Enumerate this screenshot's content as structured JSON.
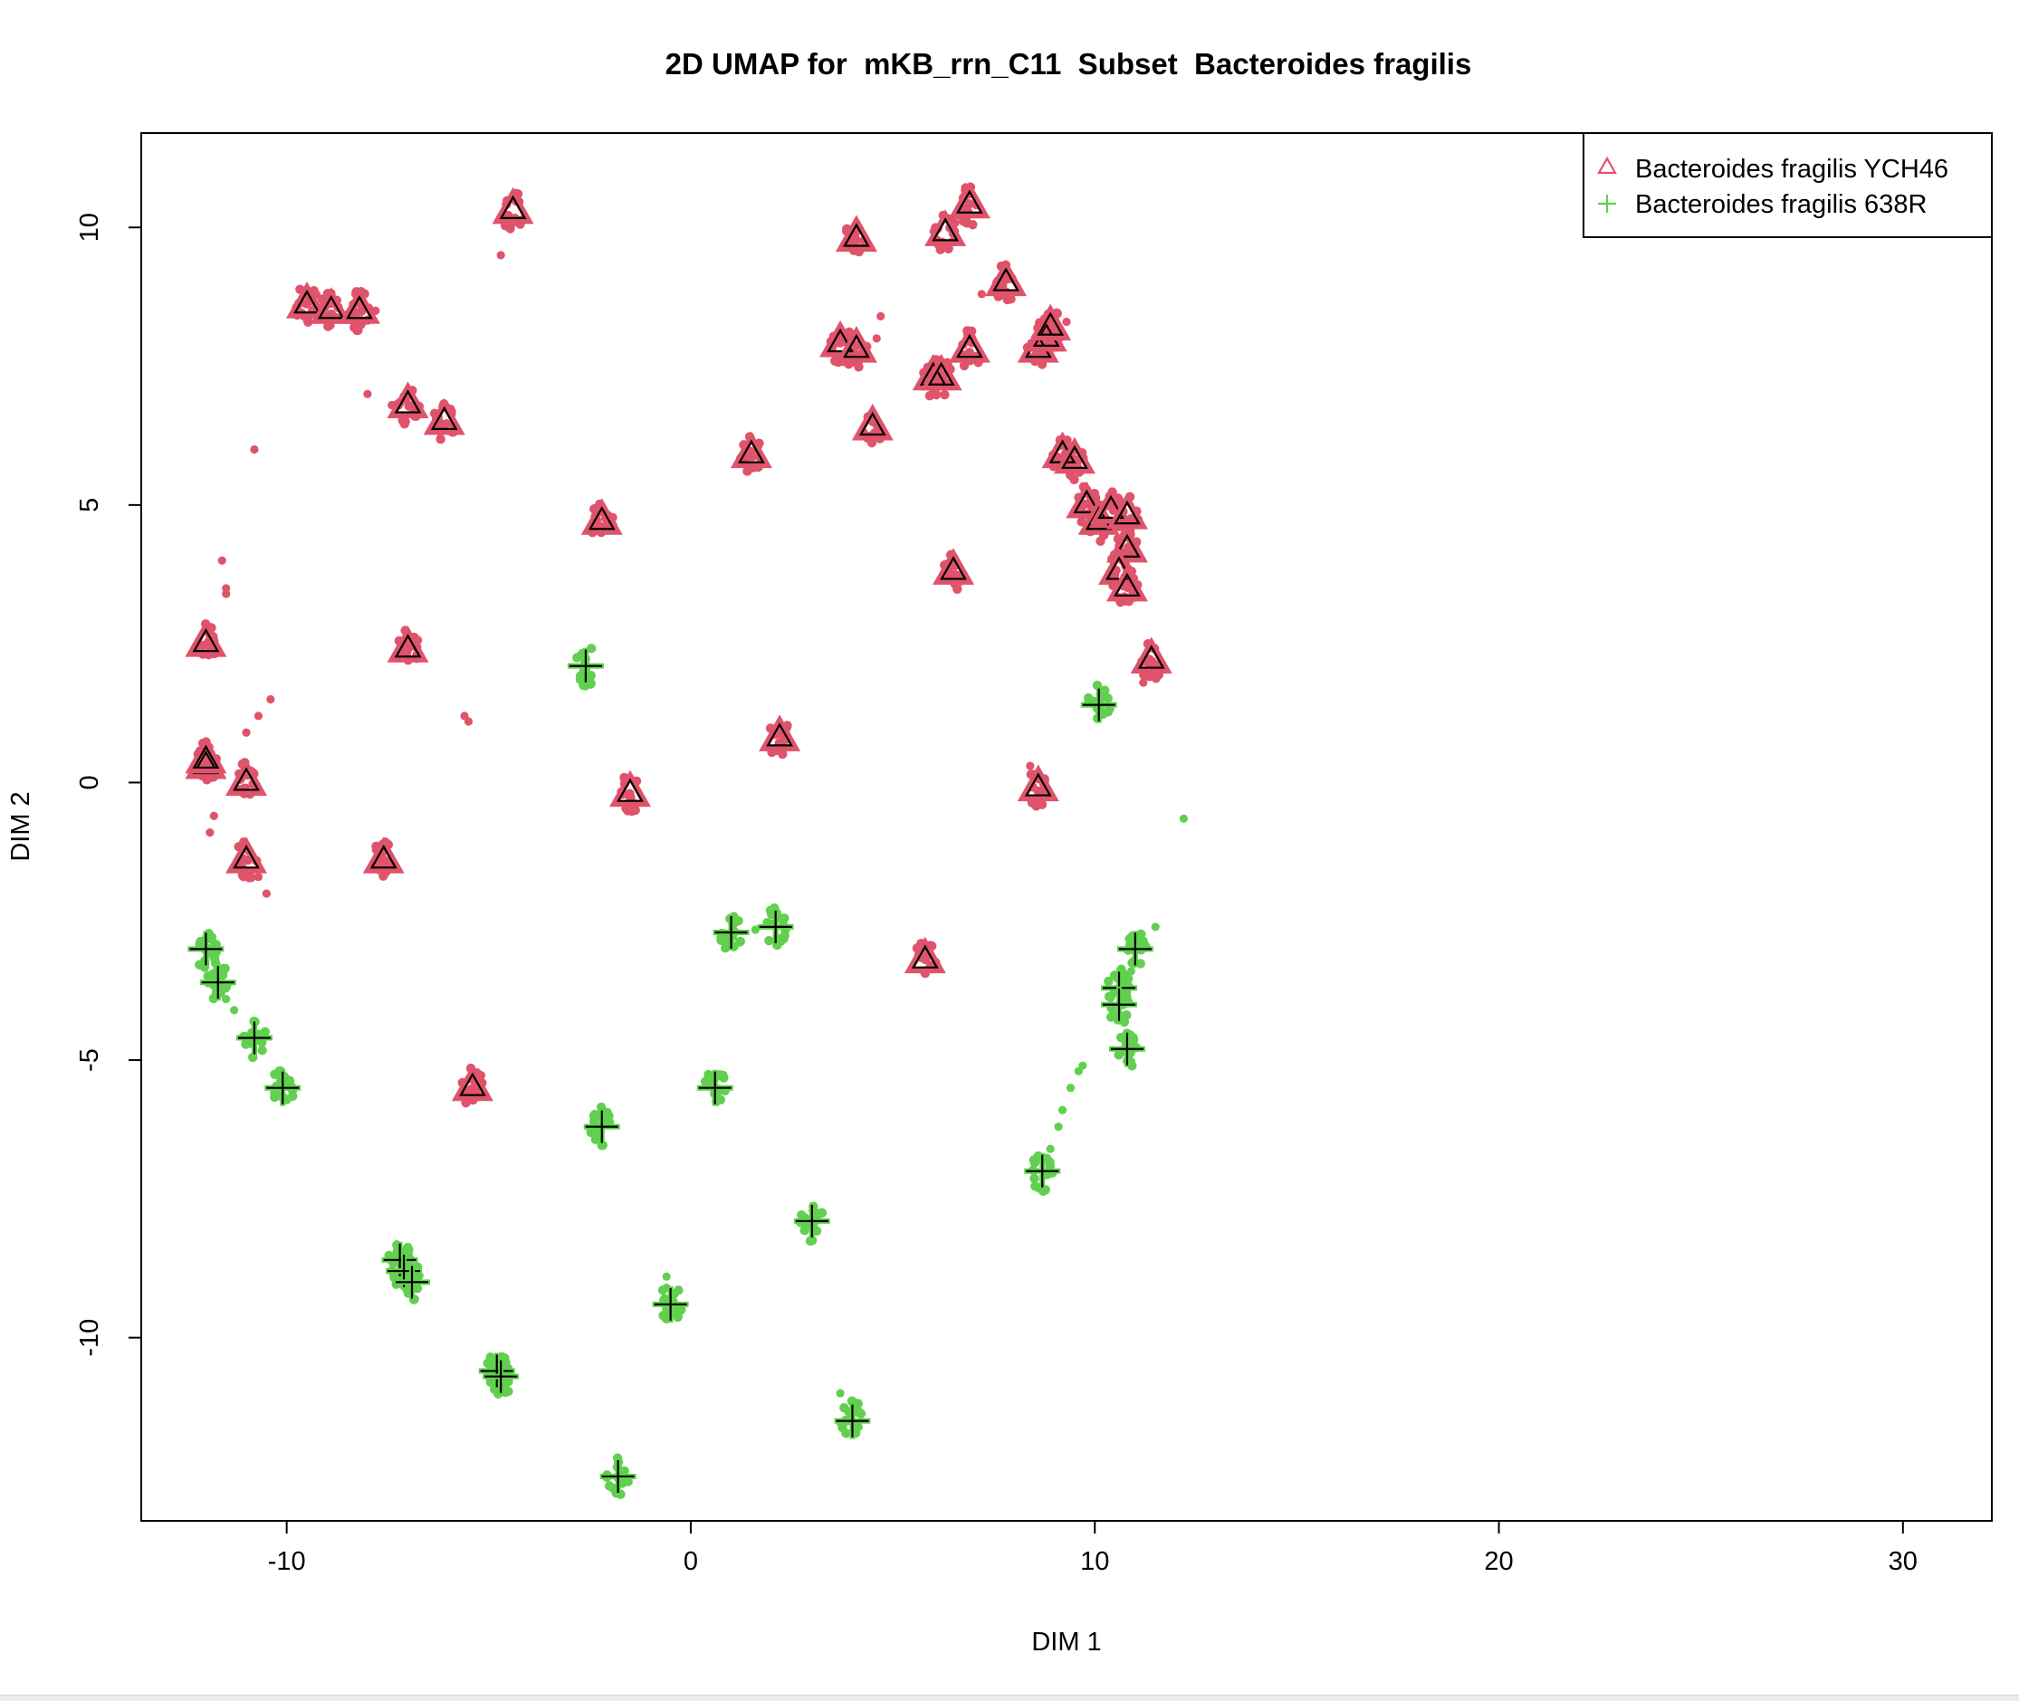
{
  "chart_data": {
    "type": "scatter",
    "title": "2D UMAP for  mKB_rrn_C11  Subset  Bacteroides fragilis",
    "xlabel": "DIM 1",
    "ylabel": "DIM 2",
    "xlim": [
      -13.6,
      32.2
    ],
    "ylim": [
      -13.3,
      11.7
    ],
    "xticks": [
      -10,
      0,
      10,
      20,
      30
    ],
    "yticks": [
      -10,
      -5,
      0,
      5,
      10
    ],
    "xtick_labels": [
      "-10",
      "0",
      "10",
      "20",
      "30"
    ],
    "ytick_labels": [
      "-10",
      "-5",
      "0",
      "5",
      "10"
    ],
    "legend": {
      "position": "top-right",
      "entries": [
        {
          "label": "Bacteroides fragilis YCH46",
          "marker": "triangle",
          "color": "#DF536B"
        },
        {
          "label": "Bacteroides fragilis 638R",
          "marker": "plus",
          "color": "#61D04F"
        }
      ]
    },
    "series": [
      {
        "name": "Bacteroides fragilis YCH46",
        "color": "#DF536B",
        "marker": "triangle",
        "centroids": [
          [
            -4.4,
            10.3
          ],
          [
            4.1,
            9.8
          ],
          [
            6.3,
            9.9
          ],
          [
            6.9,
            10.4
          ],
          [
            -9.5,
            8.6
          ],
          [
            -8.9,
            8.5
          ],
          [
            -8.2,
            8.5
          ],
          [
            7.8,
            9.0
          ],
          [
            3.7,
            7.9
          ],
          [
            4.1,
            7.8
          ],
          [
            8.6,
            7.8
          ],
          [
            8.8,
            8.0
          ],
          [
            8.9,
            8.2
          ],
          [
            6.0,
            7.3
          ],
          [
            6.2,
            7.3
          ],
          [
            6.9,
            7.8
          ],
          [
            -7.0,
            6.8
          ],
          [
            -6.1,
            6.5
          ],
          [
            4.5,
            6.4
          ],
          [
            1.5,
            5.9
          ],
          [
            9.2,
            5.9
          ],
          [
            9.5,
            5.8
          ],
          [
            9.8,
            5.0
          ],
          [
            10.1,
            4.7
          ],
          [
            10.4,
            4.9
          ],
          [
            10.8,
            4.8
          ],
          [
            10.8,
            4.2
          ],
          [
            10.6,
            3.8
          ],
          [
            10.8,
            3.5
          ],
          [
            -2.2,
            4.7
          ],
          [
            6.5,
            3.8
          ],
          [
            -12.0,
            2.5
          ],
          [
            -7.0,
            2.4
          ],
          [
            11.4,
            2.2
          ],
          [
            -12.0,
            0.3
          ],
          [
            -12.0,
            0.4
          ],
          [
            -11.0,
            0.0
          ],
          [
            2.2,
            0.8
          ],
          [
            -1.5,
            -0.2
          ],
          [
            8.6,
            -0.1
          ],
          [
            -11.0,
            -1.4
          ],
          [
            -7.6,
            -1.4
          ],
          [
            5.8,
            -3.2
          ],
          [
            -5.4,
            -5.5
          ]
        ],
        "stray_points": [
          [
            -4.7,
            9.5
          ],
          [
            -8.0,
            7.0
          ],
          [
            -10.8,
            6.0
          ],
          [
            -11.6,
            4.0
          ],
          [
            -11.5,
            3.5
          ],
          [
            -11.5,
            3.4
          ],
          [
            -10.4,
            1.5
          ],
          [
            -10.7,
            1.2
          ],
          [
            -11.0,
            0.9
          ],
          [
            -5.6,
            1.2
          ],
          [
            -5.5,
            1.1
          ],
          [
            -11.8,
            -0.6
          ],
          [
            -11.9,
            -0.9
          ],
          [
            -10.5,
            -2.0
          ],
          [
            -10.7,
            -1.7
          ],
          [
            4.7,
            8.4
          ],
          [
            4.6,
            8.0
          ],
          [
            7.2,
            8.8
          ],
          [
            9.3,
            8.3
          ],
          [
            8.4,
            0.3
          ],
          [
            8.5,
            0.1
          ],
          [
            11.2,
            1.8
          ],
          [
            11.3,
            2.0
          ],
          [
            -7.4,
            6.8
          ],
          [
            -7.8,
            8.5
          ]
        ]
      },
      {
        "name": "Bacteroides fragilis 638R",
        "color": "#61D04F",
        "marker": "plus",
        "centroids": [
          [
            -2.6,
            2.1
          ],
          [
            10.1,
            1.4
          ],
          [
            -12.0,
            -3.0
          ],
          [
            -11.7,
            -3.6
          ],
          [
            -10.8,
            -4.6
          ],
          [
            -10.1,
            -5.5
          ],
          [
            1.0,
            -2.7
          ],
          [
            2.1,
            -2.6
          ],
          [
            11.0,
            -3.0
          ],
          [
            10.6,
            -3.7
          ],
          [
            10.6,
            -4.0
          ],
          [
            10.8,
            -4.8
          ],
          [
            0.6,
            -5.5
          ],
          [
            -2.2,
            -6.2
          ],
          [
            8.7,
            -7.0
          ],
          [
            3.0,
            -7.9
          ],
          [
            -7.2,
            -8.6
          ],
          [
            -7.1,
            -8.8
          ],
          [
            -6.9,
            -9.0
          ],
          [
            -0.5,
            -9.4
          ],
          [
            -4.8,
            -10.6
          ],
          [
            -4.7,
            -10.7
          ],
          [
            4.0,
            -11.5
          ],
          [
            -1.8,
            -12.5
          ]
        ],
        "stray_points": [
          [
            12.2,
            -0.65
          ],
          [
            11.5,
            -2.6
          ],
          [
            10.9,
            -3.4
          ],
          [
            1.6,
            -2.65
          ],
          [
            9.7,
            -5.1
          ],
          [
            9.6,
            -5.2
          ],
          [
            9.4,
            -5.5
          ],
          [
            9.2,
            -5.9
          ],
          [
            9.1,
            -6.2
          ],
          [
            8.9,
            -6.6
          ],
          [
            -11.5,
            -3.9
          ],
          [
            -11.3,
            -4.1
          ],
          [
            -0.6,
            -8.9
          ],
          [
            -0.6,
            -9.1
          ],
          [
            3.7,
            -11.0
          ],
          [
            -12.0,
            -2.8
          ]
        ]
      }
    ]
  }
}
